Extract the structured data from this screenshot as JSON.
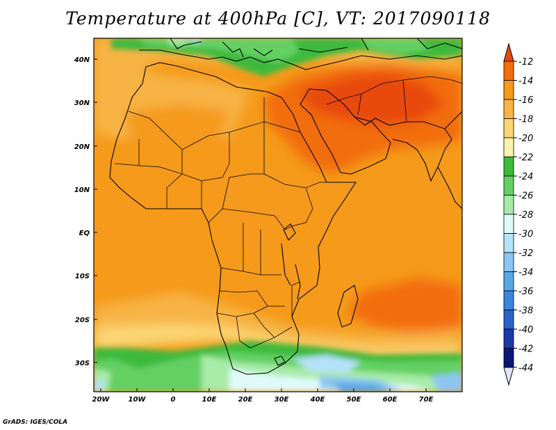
{
  "title": "Temperature at 400hPa [C], VT: 2017090118",
  "footer": "GrADS: IGES/COLA",
  "map": {
    "lon_labels": [
      "20W",
      "10W",
      "0",
      "10E",
      "20E",
      "30E",
      "40E",
      "50E",
      "60E",
      "70E"
    ],
    "lat_labels": [
      "40N",
      "30N",
      "20N",
      "10N",
      "EQ",
      "10S",
      "20S",
      "30S"
    ]
  },
  "colorbar": {
    "labels": [
      "-12",
      "-14",
      "-16",
      "-18",
      "-20",
      "-22",
      "-24",
      "-26",
      "-28",
      "-30",
      "-32",
      "-34",
      "-36",
      "-38",
      "-40",
      "-42",
      "-44"
    ],
    "colors": [
      "#e84a0e",
      "#f26d0d",
      "#f59a1a",
      "#f7b445",
      "#fbd674",
      "#fff2b0",
      "#3cba3c",
      "#64d064",
      "#a8eba8",
      "#e0fafa",
      "#b4e2f8",
      "#8cc6f0",
      "#58a8e6",
      "#3a86dc",
      "#2a62c8",
      "#1c3aa6",
      "#0c1676",
      "#e4e4fa"
    ]
  }
}
